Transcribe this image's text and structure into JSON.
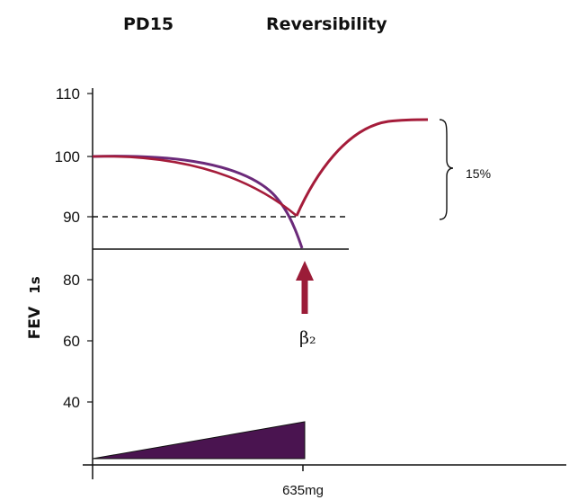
{
  "headers": {
    "left": "PD15",
    "right": "Reversibility"
  },
  "chart_data": {
    "type": "line",
    "title": "",
    "ylabel": "FEV",
    "ylabel_subscript": "1s",
    "xlabel": "",
    "ylim": [
      30,
      110
    ],
    "yticks": [
      "110",
      "100",
      "90",
      "80",
      "60",
      "40"
    ],
    "x_tick_label": "635mg",
    "reference_line_90": 90,
    "series": [
      {
        "color": "#6b2a7a",
        "points": [
          [
            0,
            99.6
          ],
          [
            0.2,
            99.2
          ],
          [
            0.4,
            97.2
          ],
          [
            0.6,
            93.6
          ],
          [
            0.8,
            90.0
          ],
          [
            1.0,
            85.0
          ]
        ]
      },
      {
        "color": "#a51c3a",
        "points": [
          [
            0,
            99.6
          ],
          [
            0.25,
            99.0
          ],
          [
            0.5,
            97.0
          ],
          [
            0.75,
            93.5
          ],
          [
            1.0,
            90.3
          ],
          [
            1.15,
            95.0
          ],
          [
            1.3,
            100.0
          ],
          [
            1.5,
            104.0
          ],
          [
            1.7,
            105.4
          ],
          [
            2.0,
            105.6
          ]
        ]
      }
    ],
    "dose_ramp": {
      "color": "#4a1450",
      "from": 1.5,
      "to": 33
    },
    "annotations": {
      "bracket_label": "15%",
      "bronchodilator_label": "β₂",
      "arrow_color": "#9b1c38"
    }
  }
}
